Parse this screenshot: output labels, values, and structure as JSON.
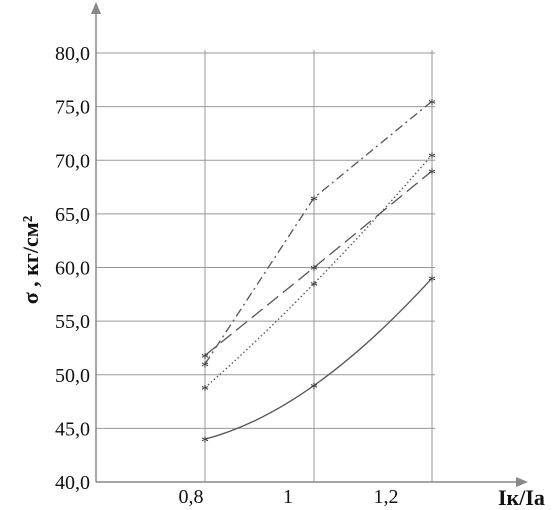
{
  "chart_data": {
    "type": "line",
    "xlabel": "Iк/Iа",
    "ylabel": "σ , кг/см²",
    "xlim": [
      0.6,
      1.4
    ],
    "ylim": [
      40,
      80
    ],
    "y_ticks": [
      "40,0",
      "45,0",
      "50,0",
      "55,0",
      "60,0",
      "65,0",
      "70,0",
      "75,0",
      "80,0"
    ],
    "x_ticks": [
      {
        "value": 0.8,
        "label": "0,8"
      },
      {
        "value": 1.0,
        "label": "1"
      },
      {
        "value": 1.2,
        "label": "1,2"
      }
    ],
    "x_gridlines": [
      0.8,
      1.0,
      1.2
    ],
    "grid": true,
    "marker": "*",
    "x_points": [
      0.8,
      1.0,
      1.2
    ],
    "series": [
      {
        "style": "solid",
        "values": [
          44,
          49,
          59
        ]
      },
      {
        "style": "dotted",
        "values": [
          48.8,
          58.5,
          70.5
        ]
      },
      {
        "style": "dashed",
        "values": [
          51.8,
          60,
          69
        ]
      },
      {
        "style": "dashdot",
        "values": [
          51,
          66.5,
          75.5
        ]
      }
    ],
    "colors": {
      "axis": "#888888",
      "grid": "#999999",
      "line": "#555555"
    }
  }
}
